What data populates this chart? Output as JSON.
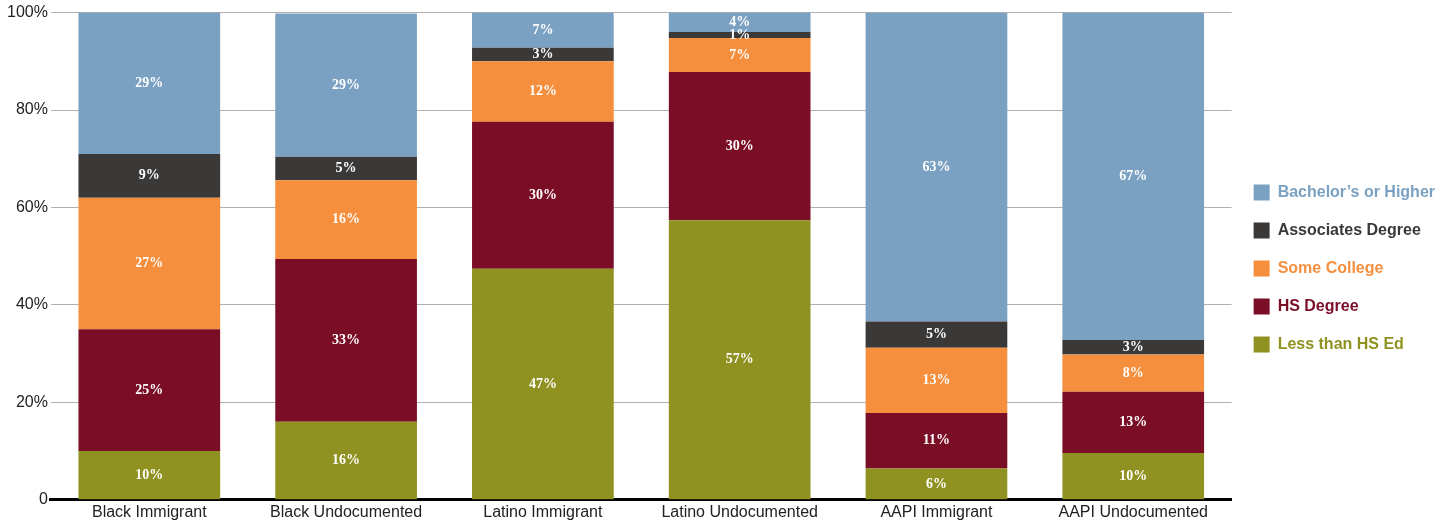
{
  "chart_data": {
    "type": "bar",
    "stacked": true,
    "categories": [
      "Black Immigrant",
      "Black Undocumented",
      "Latino Immigrant",
      "Latino Undocumented",
      "AAPI Immigrant",
      "AAPI Undocumented"
    ],
    "series": [
      {
        "name": "Less than HS Ed",
        "color": "#8f9120",
        "values": [
          10,
          16,
          47.4,
          57.4,
          6.4,
          9.6
        ],
        "value_labels": [
          "10%",
          "16%",
          "47%",
          "57%",
          "6%",
          "10%"
        ]
      },
      {
        "name": "HS Degree",
        "color": "#7a0e27",
        "values": [
          25,
          33.4,
          30.2,
          30.4,
          11.4,
          12.6
        ],
        "value_labels": [
          "25%",
          "33%",
          "30%",
          "30%",
          "11%",
          "13%"
        ]
      },
      {
        "name": "Some College",
        "color": "#f58f3d",
        "values": [
          27,
          16.2,
          12.4,
          7,
          13.4,
          7.6
        ],
        "value_labels": [
          "27%",
          "16%",
          "12%",
          "7%",
          "13%",
          "8%"
        ]
      },
      {
        "name": "Associates Degree",
        "color": "#3b3838",
        "values": [
          9,
          4.8,
          2.8,
          1.2,
          5.4,
          3
        ],
        "value_labels": [
          "9%",
          "5%",
          "3%",
          "1%",
          "5%",
          "3%"
        ]
      },
      {
        "name": "Bachelor’s or Higher",
        "color": "#7aa1c2",
        "values": [
          29,
          29.4,
          7.2,
          4,
          63.4,
          67.2
        ],
        "value_labels": [
          "29%",
          "29%",
          "7%",
          "4%",
          "63%",
          "67%"
        ]
      }
    ],
    "ylim": [
      0,
      100
    ],
    "yticks": [
      {
        "value": 0,
        "label": "0"
      },
      {
        "value": 20,
        "label": "20%"
      },
      {
        "value": 40,
        "label": "40%"
      },
      {
        "value": 60,
        "label": "60%"
      },
      {
        "value": 80,
        "label": "80%"
      },
      {
        "value": 100,
        "label": "100%"
      }
    ],
    "grid": "y",
    "legend": "right"
  }
}
